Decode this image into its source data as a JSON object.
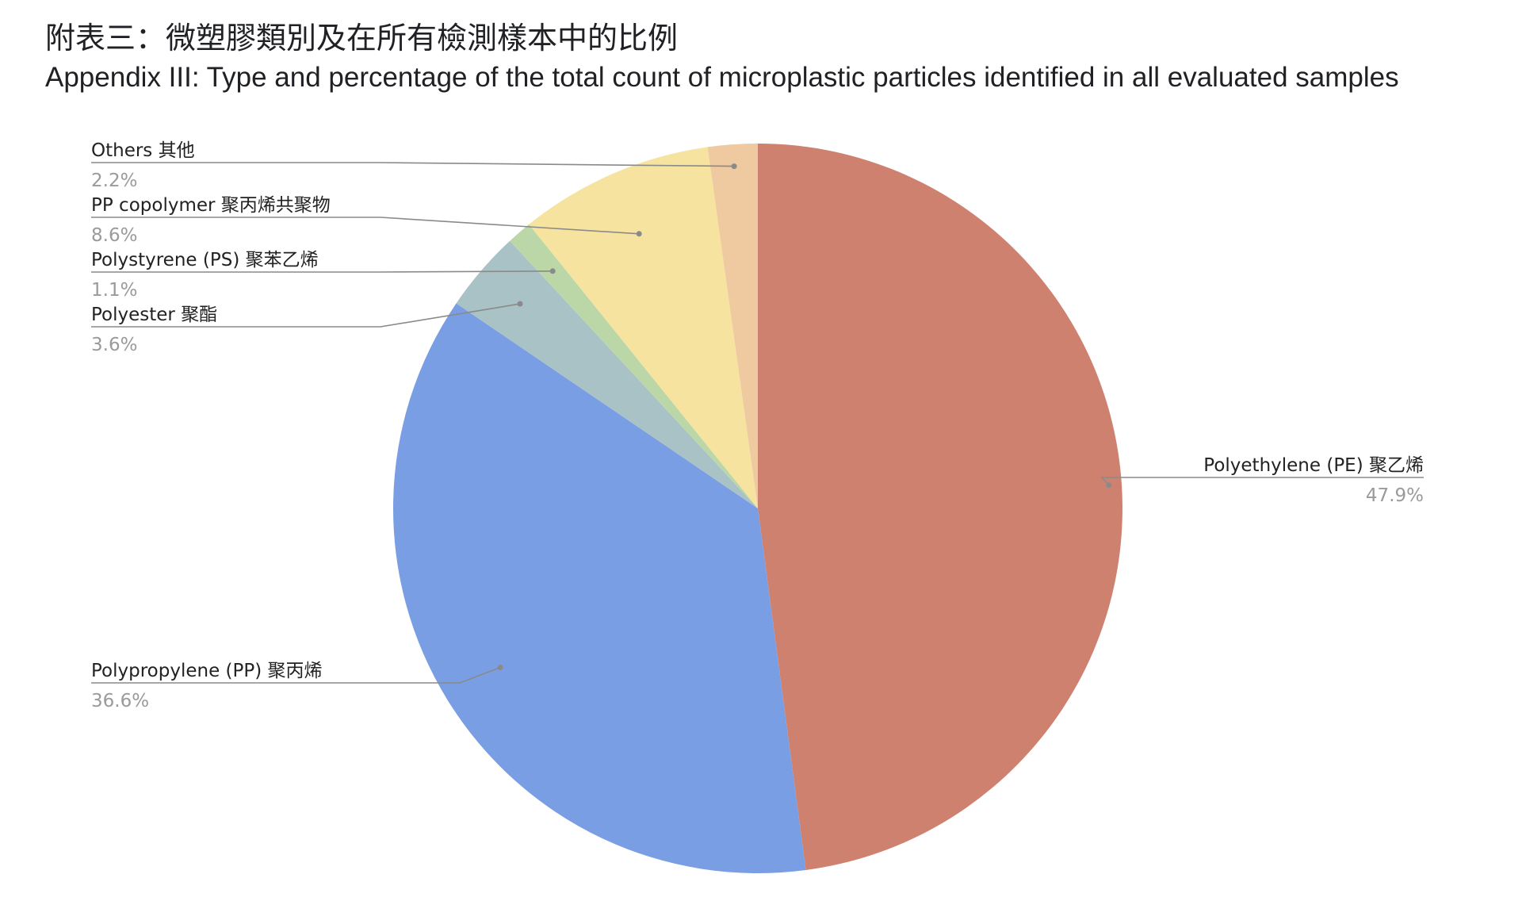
{
  "title_zh": "附表三：微塑膠類別及在所有檢測樣本中的比例",
  "title_en": "Appendix III: Type and percentage of the total count of microplastic particles identified in all evaluated samples",
  "chart_data": {
    "type": "pie",
    "title": "附表三：微塑膠類別及在所有檢測樣本中的比例",
    "subtitle": "Appendix III: Type and percentage of the total count of microplastic particles identified in all evaluated samples",
    "unit": "%",
    "start": "12 o'clock, clockwise",
    "slices": [
      {
        "label": "Polyethylene (PE) 聚乙烯",
        "value": 47.9,
        "pct": "47.9%",
        "color": "#cf8170"
      },
      {
        "label": "Polypropylene (PP) 聚丙烯",
        "value": 36.6,
        "pct": "36.6%",
        "color": "#799ee3"
      },
      {
        "label": "Polyester 聚酯",
        "value": 3.6,
        "pct": "3.6%",
        "color": "#a8c2c6"
      },
      {
        "label": "Polystyrene (PS) 聚苯乙烯",
        "value": 1.1,
        "pct": "1.1%",
        "color": "#bcd7a7"
      },
      {
        "label": "PP copolymer 聚丙烯共聚物",
        "value": 8.6,
        "pct": "8.6%",
        "color": "#f7e3a0"
      },
      {
        "label": "Others 其他",
        "value": 2.2,
        "pct": "2.2%",
        "color": "#efc99f"
      }
    ],
    "legend": "none (labels with leader lines)"
  }
}
